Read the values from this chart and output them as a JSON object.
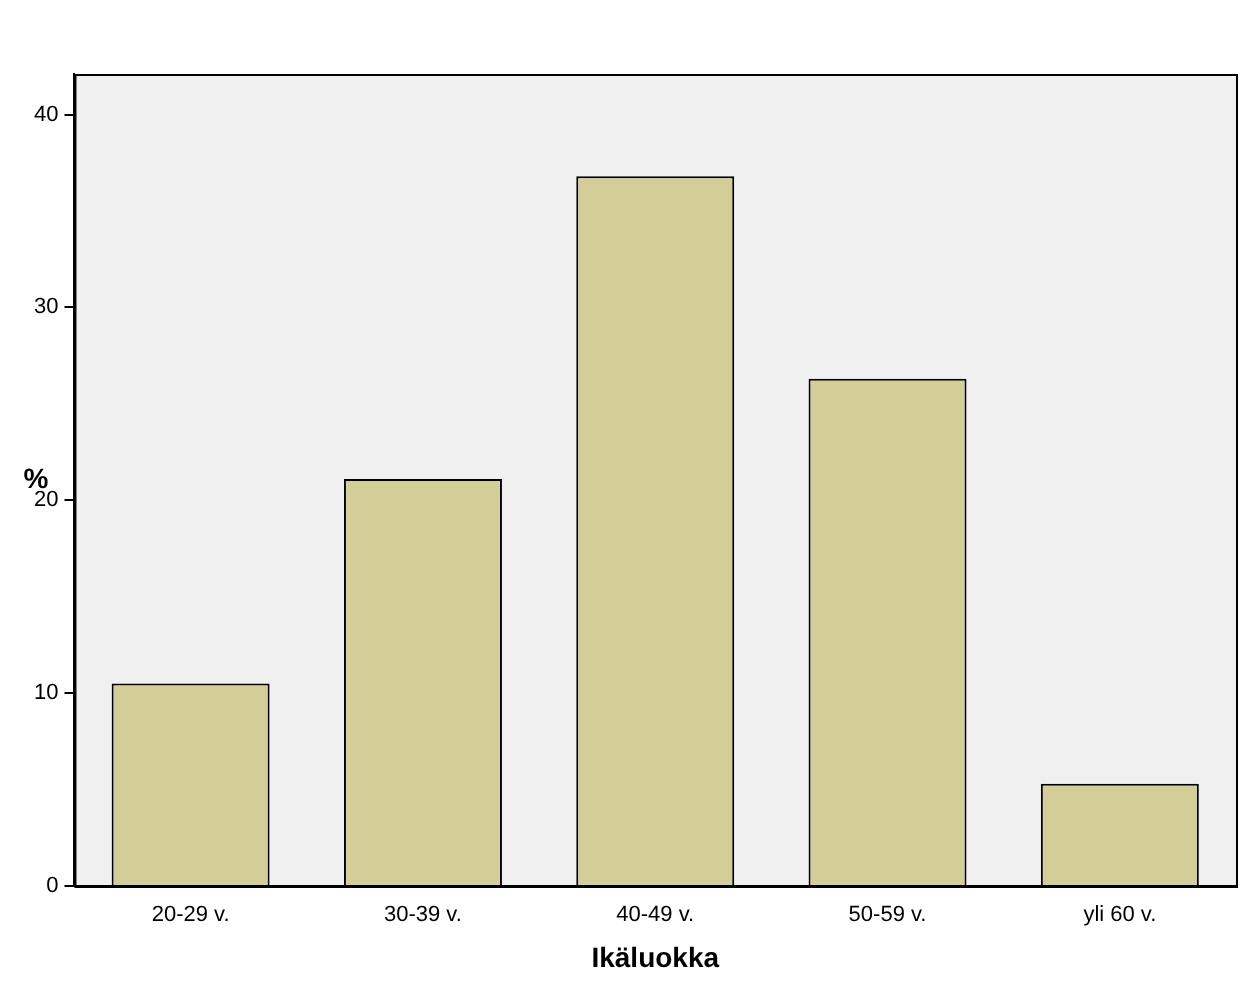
{
  "chart_data": {
    "type": "bar",
    "xlabel": "Ikäluokka",
    "ylabel": "%",
    "categories": [
      "20-29 v.",
      "30-39 v.",
      "40-49 v.",
      "50-59 v.",
      "yli 60 v."
    ],
    "values": [
      10.5,
      21.1,
      36.8,
      26.3,
      5.3
    ],
    "color": "#d3ce97",
    "ylim": [
      0,
      42.1
    ],
    "yticks": [
      0,
      10,
      20,
      30,
      40
    ],
    "grid": false,
    "legend": false
  }
}
